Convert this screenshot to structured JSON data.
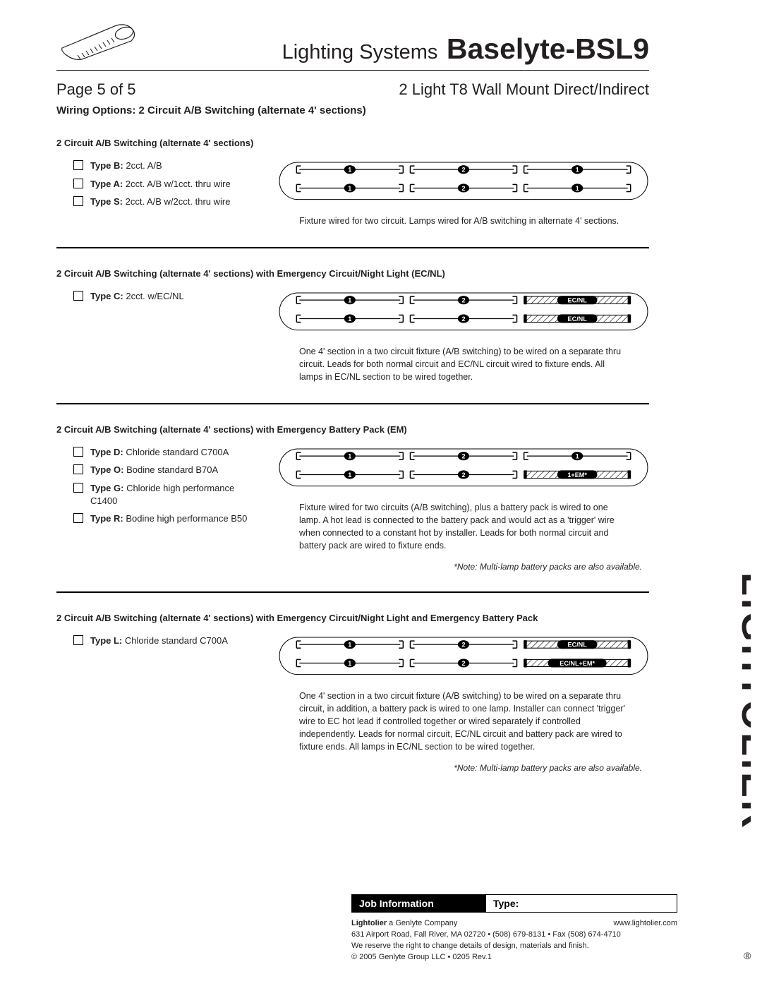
{
  "header": {
    "title_prefix": "Lighting Systems",
    "title_main": "Baselyte-BSL9",
    "page_indicator": "Page 5 of 5",
    "product_subtitle": "2 Light T8 Wall Mount Direct/Indirect",
    "section_title": "Wiring Options: 2 Circuit A/B Switching (alternate 4' sections)"
  },
  "brand_vertical": "LIGHTOLIER",
  "colors": {
    "text": "#231f20",
    "rule": "#000000",
    "background": "#ffffff",
    "job_bar_bg": "#000000",
    "job_bar_fg": "#ffffff"
  },
  "blocks": [
    {
      "title": "2 Circuit A/B Switching (alternate 4' sections)",
      "options": [
        {
          "label": "Type B:",
          "desc": "2cct. A/B"
        },
        {
          "label": "Type A:",
          "desc": "2cct. A/B w/1cct. thru wire"
        },
        {
          "label": "Type S:",
          "desc": "2cct. A/B w/2cct. thru wire"
        }
      ],
      "diagram": {
        "rows": [
          [
            {
              "n": "1"
            },
            {
              "n": "2"
            },
            {
              "n": "1"
            }
          ],
          [
            {
              "n": "1"
            },
            {
              "n": "2"
            },
            {
              "n": "1"
            }
          ]
        ]
      },
      "caption": "Fixture wired for two circuit. Lamps wired for A/B switching in alternate 4' sections.",
      "note": ""
    },
    {
      "title": "2 Circuit A/B Switching (alternate 4' sections) with Emergency Circuit/Night Light (EC/NL)",
      "options": [
        {
          "label": "Type C:",
          "desc": "2cct. w/EC/NL"
        }
      ],
      "diagram": {
        "rows": [
          [
            {
              "n": "1"
            },
            {
              "n": "2"
            },
            {
              "ecnl": "EC/NL"
            }
          ],
          [
            {
              "n": "1"
            },
            {
              "n": "2"
            },
            {
              "ecnl": "EC/NL"
            }
          ]
        ]
      },
      "caption": "One 4' section in a two circuit fixture (A/B switching) to be wired on a separate thru circuit. Leads for both normal circuit and EC/NL circuit wired to fixture ends. All lamps in EC/NL section to be wired together.",
      "note": ""
    },
    {
      "title": "2 Circuit A/B Switching (alternate 4' sections) with Emergency Battery Pack (EM)",
      "options": [
        {
          "label": "Type D:",
          "desc": "Chloride standard C700A"
        },
        {
          "label": "Type O:",
          "desc": "Bodine standard B70A"
        },
        {
          "label": "Type G:",
          "desc": "Chloride high performance C1400"
        },
        {
          "label": "Type R:",
          "desc": "Bodine high performance B50"
        }
      ],
      "diagram": {
        "rows": [
          [
            {
              "n": "1"
            },
            {
              "n": "2"
            },
            {
              "n": "1"
            }
          ],
          [
            {
              "n": "1"
            },
            {
              "n": "2"
            },
            {
              "ecnl": "1+EM*"
            }
          ]
        ]
      },
      "caption": "Fixture wired for two circuits (A/B switching), plus a battery pack is wired to one lamp. A hot lead is connected to the battery pack and would act as a 'trigger' wire when connected to a constant hot by installer. Leads for both normal circuit and battery pack are wired to fixture ends.",
      "note": "*Note: Multi-lamp battery packs are also available."
    },
    {
      "title": "2 Circuit A/B Switching (alternate 4' sections) with Emergency Circuit/Night Light and Emergency Battery Pack",
      "options": [
        {
          "label": "Type L:",
          "desc": "Chloride standard C700A"
        }
      ],
      "diagram": {
        "rows": [
          [
            {
              "n": "1"
            },
            {
              "n": "2"
            },
            {
              "ecnl": "EC/NL"
            }
          ],
          [
            {
              "n": "1"
            },
            {
              "n": "2"
            },
            {
              "ecnl": "EC/NL+EM*"
            }
          ]
        ]
      },
      "caption": "One 4' section in a two circuit fixture (A/B switching) to be wired on a separate thru circuit, in addition, a battery pack is wired to one lamp. Installer can connect 'trigger' wire to EC hot lead if controlled together or wired separately if controlled independently. Leads for normal circuit, EC/NL circuit and battery pack are wired to fixture ends. All lamps in EC/NL section to be wired together.",
      "note": "*Note: Multi-lamp battery packs are also available."
    }
  ],
  "footer": {
    "job_label": "Job Information",
    "type_label": "Type:",
    "company_bold": "Lightolier",
    "company_rest": " a Genlyte Company",
    "url": "www.lightolier.com",
    "address": "631 Airport Road, Fall River, MA 02720 • (508) 679-8131 • Fax (508) 674-4710",
    "disclaimer": "We reserve the right to change details of design, materials and finish.",
    "copyright": "© 2005 Genlyte Group LLC • 0205 Rev.1"
  }
}
